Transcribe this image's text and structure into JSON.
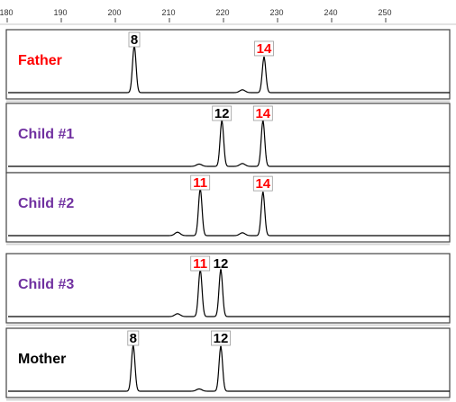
{
  "chart_data": {
    "type": "line",
    "x_axis": {
      "range": [
        180,
        262
      ],
      "ticks": [
        180,
        190,
        200,
        210,
        220,
        230,
        240,
        250
      ],
      "tick_labels": [
        "180",
        "190",
        "200",
        "210",
        "220",
        "230",
        "240",
        "250"
      ]
    },
    "colors": {
      "inherited_from_father": "#ff0000",
      "other_allele": "#000000",
      "label_father": "#ff0000",
      "label_child": "#7030a0",
      "label_mother": "#000000",
      "trace": "#000000"
    },
    "panels": [
      {
        "label": "Father",
        "label_color": "#ff0000",
        "peaks": [
          {
            "x": 203.5,
            "height": 0.82
          },
          {
            "x": 227.5,
            "height": 0.62
          }
        ],
        "minor_peaks": [
          {
            "x": 223.5,
            "height": 0.05
          }
        ],
        "alleles": [
          {
            "text": "8",
            "x": 203.5,
            "color": "#000000",
            "boxed": true
          },
          {
            "text": "14",
            "x": 227.5,
            "color": "#ff0000",
            "boxed": true
          }
        ]
      },
      {
        "label": "Child #1",
        "label_color": "#7030a0",
        "peaks": [
          {
            "x": 219.7,
            "height": 0.8
          },
          {
            "x": 227.3,
            "height": 0.8
          }
        ],
        "minor_peaks": [
          {
            "x": 215.5,
            "height": 0.04
          },
          {
            "x": 223.5,
            "height": 0.05
          }
        ],
        "alleles": [
          {
            "text": "12",
            "x": 219.7,
            "color": "#000000",
            "boxed": true
          },
          {
            "text": "14",
            "x": 227.3,
            "color": "#ff0000",
            "boxed": true
          }
        ]
      },
      {
        "label": "Child #2",
        "label_color": "#7030a0",
        "peaks": [
          {
            "x": 215.7,
            "height": 0.82
          },
          {
            "x": 227.3,
            "height": 0.76
          }
        ],
        "minor_peaks": [
          {
            "x": 211.5,
            "height": 0.06
          },
          {
            "x": 223.5,
            "height": 0.05
          }
        ],
        "alleles": [
          {
            "text": "11",
            "x": 215.7,
            "color": "#ff0000",
            "boxed": true
          },
          {
            "text": "14",
            "x": 227.3,
            "color": "#ff0000",
            "boxed": true
          }
        ]
      },
      {
        "label": "Child #3",
        "label_color": "#7030a0",
        "peaks": [
          {
            "x": 215.7,
            "height": 0.82
          },
          {
            "x": 219.5,
            "height": 0.82
          }
        ],
        "minor_peaks": [
          {
            "x": 211.5,
            "height": 0.05
          }
        ],
        "alleles": [
          {
            "text": "11",
            "x": 215.7,
            "color": "#ff0000",
            "boxed": true
          },
          {
            "text": "12",
            "x": 219.5,
            "color": "#000000",
            "boxed": false
          }
        ]
      },
      {
        "label": "Mother",
        "label_color": "#000000",
        "peaks": [
          {
            "x": 203.3,
            "height": 0.8
          },
          {
            "x": 219.5,
            "height": 0.78
          }
        ],
        "minor_peaks": [
          {
            "x": 215.5,
            "height": 0.04
          }
        ],
        "alleles": [
          {
            "text": "8",
            "x": 203.3,
            "color": "#000000",
            "boxed": true
          },
          {
            "text": "12",
            "x": 219.5,
            "color": "#000000",
            "boxed": true
          }
        ]
      }
    ]
  }
}
